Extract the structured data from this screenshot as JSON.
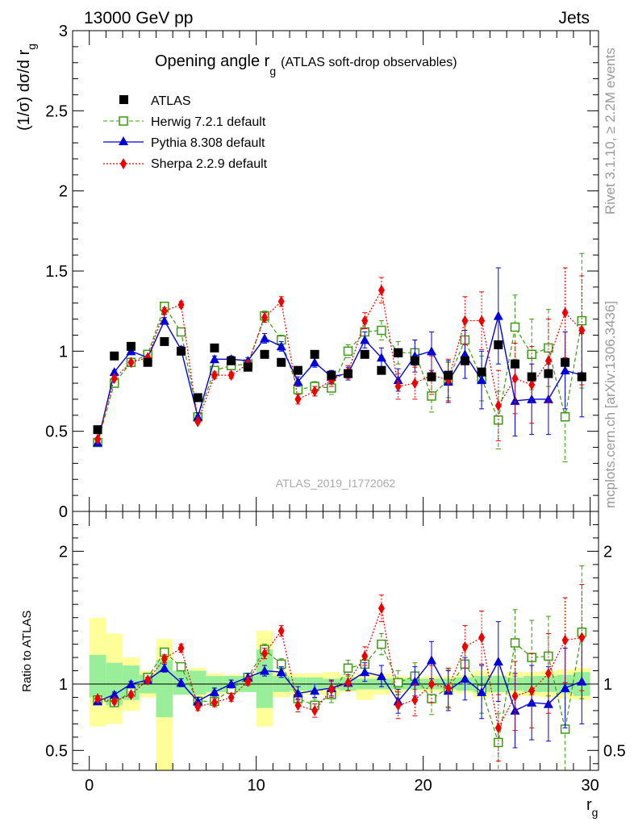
{
  "header": {
    "left": "13000 GeV pp",
    "right": "Jets"
  },
  "side": {
    "rivet": "Rivet 3.1.10, ≥ 2.2M events",
    "mcplots": "mcplots.cern.ch [arXiv:1306.3436]"
  },
  "chart_data": [
    {
      "type": "scatter",
      "title": {
        "main": "Opening angle r",
        "sub": "g",
        "rest": "(ATLAS soft-drop observables)"
      },
      "ylabel": {
        "main": "(1/σ) dσ/d r",
        "sub": "g"
      },
      "watermark": "ATLAS_2019_I1772062",
      "xlim": [
        -1,
        30.5
      ],
      "ylim": [
        0,
        3
      ],
      "yticks": [
        "0",
        "0.5",
        "1",
        "1.5",
        "2",
        "2.5",
        "3"
      ],
      "x": [
        0.5,
        1.5,
        2.5,
        3.5,
        4.5,
        5.5,
        6.5,
        7.5,
        8.5,
        9.5,
        10.5,
        11.5,
        12.5,
        13.5,
        14.5,
        15.5,
        16.5,
        17.5,
        18.5,
        19.5,
        20.5,
        21.5,
        22.5,
        23.5,
        24.5,
        25.5,
        26.5,
        27.5,
        28.5,
        29.5
      ],
      "legend_position": "top-left",
      "series": [
        {
          "name": "ATLAS",
          "color": "#000000",
          "marker": "square",
          "values": [
            0.51,
            0.97,
            1.03,
            0.93,
            1.06,
            1.0,
            0.71,
            1.02,
            0.94,
            0.9,
            0.98,
            0.93,
            0.88,
            0.98,
            0.85,
            0.86,
            0.98,
            0.88,
            0.99,
            0.94,
            0.84,
            0.85,
            0.94,
            0.87,
            1.04,
            0.92,
            0.84,
            0.86,
            0.93,
            0.84
          ]
        },
        {
          "name": "Herwig 7.2.1 default",
          "color": "#3a9a10",
          "marker": "open-square",
          "dash": "5,3",
          "values": [
            0.43,
            0.8,
            0.93,
            0.98,
            1.28,
            1.12,
            0.59,
            0.88,
            0.91,
            0.92,
            1.22,
            1.07,
            0.76,
            0.78,
            0.77,
            1.0,
            1.12,
            1.13,
            0.99,
            0.99,
            0.72,
            0.82,
            1.07,
            0.83,
            0.57,
            1.15,
            0.98,
            1.02,
            0.59,
            1.19
          ],
          "err": [
            0.01,
            0.01,
            0.01,
            0.01,
            0.02,
            0.02,
            0.01,
            0.02,
            0.02,
            0.02,
            0.03,
            0.03,
            0.03,
            0.03,
            0.04,
            0.04,
            0.05,
            0.06,
            0.07,
            0.08,
            0.1,
            0.11,
            0.12,
            0.14,
            0.18,
            0.2,
            0.22,
            0.24,
            0.28,
            0.42
          ]
        },
        {
          "name": "Pythia 8.308 default",
          "color": "#0000dd",
          "marker": "triangle",
          "values": [
            0.43,
            0.87,
            1.0,
            0.96,
            1.19,
            1.01,
            0.59,
            0.95,
            0.95,
            0.94,
            1.08,
            1.03,
            0.81,
            0.93,
            0.84,
            0.86,
            1.07,
            0.96,
            0.82,
            0.97,
            1.0,
            0.81,
            0.98,
            0.82,
            1.22,
            0.69,
            0.7,
            0.7,
            0.88,
            0.85
          ],
          "err": [
            0.01,
            0.01,
            0.01,
            0.01,
            0.02,
            0.02,
            0.01,
            0.02,
            0.02,
            0.02,
            0.03,
            0.03,
            0.03,
            0.03,
            0.04,
            0.04,
            0.05,
            0.06,
            0.07,
            0.1,
            0.12,
            0.13,
            0.15,
            0.18,
            0.3,
            0.22,
            0.22,
            0.22,
            0.24,
            0.26
          ]
        },
        {
          "name": "Sherpa 2.2.9 default",
          "color": "#ee0000",
          "marker": "diamond",
          "dash": "2,2",
          "values": [
            0.45,
            0.83,
            0.93,
            0.96,
            1.25,
            1.29,
            0.56,
            0.85,
            0.85,
            0.92,
            1.21,
            1.31,
            0.7,
            0.75,
            0.82,
            0.87,
            1.19,
            1.38,
            0.78,
            0.8,
            0.85,
            0.82,
            1.19,
            1.19,
            0.66,
            0.83,
            0.79,
            0.94,
            1.24,
            1.13
          ],
          "err": [
            0.01,
            0.01,
            0.01,
            0.01,
            0.02,
            0.02,
            0.01,
            0.02,
            0.02,
            0.02,
            0.03,
            0.03,
            0.03,
            0.03,
            0.04,
            0.04,
            0.05,
            0.08,
            0.08,
            0.1,
            0.12,
            0.13,
            0.15,
            0.18,
            0.22,
            0.22,
            0.24,
            0.26,
            0.28,
            0.34
          ]
        }
      ]
    },
    {
      "type": "scatter",
      "ylabel": "Ratio to ATLAS",
      "xlabel": {
        "main": "r",
        "sub": "g"
      },
      "xlim": [
        -1,
        30.5
      ],
      "ylim": [
        0.35,
        2.3
      ],
      "xticks": [
        "0",
        "10",
        "20",
        "30"
      ],
      "yticks": [
        "0.5",
        "1",
        "2"
      ],
      "band_inner": [
        0.22,
        0.16,
        0.14,
        0.07,
        0.18,
        0.1,
        0.1,
        0.06,
        0.06,
        0.06,
        0.26,
        0.06,
        0.05,
        0.05,
        0.04,
        0.05,
        0.04,
        0.04,
        0.04,
        0.04,
        0.04,
        0.04,
        0.05,
        0.06,
        0.06,
        0.05,
        0.06,
        0.06,
        0.07,
        0.09
      ],
      "band_outer": [
        0.5,
        0.38,
        0.2,
        0.1,
        0.34,
        0.08,
        0.12,
        0.08,
        0.07,
        0.06,
        0.4,
        0.1,
        0.08,
        0.08,
        0.09,
        0.06,
        0.08,
        0.08,
        0.06,
        0.05,
        0.06,
        0.06,
        0.07,
        0.1,
        0.07,
        0.09,
        0.09,
        0.1,
        0.11,
        0.12
      ],
      "band_low_inner": [
        0.1,
        0.16,
        0.12,
        0.07,
        0.25,
        0.08,
        0.08,
        0.06,
        0.06,
        0.06,
        0.18,
        0.06,
        0.05,
        0.05,
        0.04,
        0.05,
        0.04,
        0.04,
        0.04,
        0.04,
        0.04,
        0.04,
        0.05,
        0.06,
        0.06,
        0.05,
        0.06,
        0.06,
        0.07,
        0.09
      ],
      "band_low_outer": [
        0.32,
        0.3,
        0.2,
        0.1,
        0.65,
        0.08,
        0.1,
        0.08,
        0.07,
        0.06,
        0.32,
        0.1,
        0.08,
        0.08,
        0.09,
        0.06,
        0.12,
        0.08,
        0.06,
        0.05,
        0.06,
        0.06,
        0.07,
        0.1,
        0.07,
        0.09,
        0.09,
        0.1,
        0.11,
        0.12
      ],
      "series": [
        {
          "name": "Herwig 7.2.1 default",
          "values": [
            0.88,
            0.86,
            0.94,
            1.05,
            1.24,
            1.13,
            0.87,
            0.87,
            0.96,
            1.05,
            1.26,
            1.15,
            0.89,
            0.84,
            0.92,
            1.12,
            1.15,
            1.3,
            1.01,
            1.06,
            0.89,
            0.97,
            1.15,
            0.96,
            0.56,
            1.31,
            1.2,
            1.21,
            0.66,
            1.39
          ],
          "err": [
            0.02,
            0.02,
            0.02,
            0.02,
            0.03,
            0.03,
            0.03,
            0.03,
            0.03,
            0.03,
            0.04,
            0.04,
            0.05,
            0.05,
            0.06,
            0.06,
            0.07,
            0.08,
            0.09,
            0.1,
            0.12,
            0.14,
            0.15,
            0.18,
            0.22,
            0.25,
            0.28,
            0.3,
            0.35,
            0.5
          ]
        },
        {
          "name": "Pythia 8.308 default",
          "values": [
            0.87,
            0.92,
            1.0,
            1.03,
            1.12,
            1.01,
            0.87,
            0.94,
            1.0,
            1.05,
            1.1,
            1.09,
            0.93,
            0.95,
            0.97,
            1.01,
            1.09,
            1.06,
            0.87,
            1.02,
            1.18,
            0.95,
            1.04,
            0.94,
            1.17,
            0.8,
            0.86,
            0.85,
            0.97,
            1.02
          ],
          "err": [
            0.02,
            0.02,
            0.02,
            0.02,
            0.03,
            0.03,
            0.03,
            0.03,
            0.03,
            0.03,
            0.04,
            0.04,
            0.05,
            0.05,
            0.06,
            0.06,
            0.07,
            0.08,
            0.09,
            0.11,
            0.14,
            0.15,
            0.16,
            0.2,
            0.3,
            0.28,
            0.28,
            0.28,
            0.3,
            0.32
          ]
        },
        {
          "name": "Sherpa 2.2.9 default",
          "values": [
            0.89,
            0.87,
            0.92,
            1.03,
            1.19,
            1.27,
            0.83,
            0.86,
            0.9,
            1.02,
            1.23,
            1.4,
            0.84,
            0.8,
            0.96,
            1.01,
            1.21,
            1.57,
            0.84,
            0.88,
            1.0,
            0.97,
            1.28,
            1.35,
            0.67,
            0.91,
            0.95,
            1.08,
            1.33,
            1.35
          ],
          "err": [
            0.02,
            0.02,
            0.02,
            0.02,
            0.03,
            0.03,
            0.03,
            0.03,
            0.03,
            0.03,
            0.04,
            0.04,
            0.05,
            0.05,
            0.06,
            0.06,
            0.07,
            0.1,
            0.1,
            0.12,
            0.14,
            0.15,
            0.16,
            0.2,
            0.25,
            0.26,
            0.28,
            0.3,
            0.32,
            0.4
          ]
        }
      ]
    }
  ]
}
